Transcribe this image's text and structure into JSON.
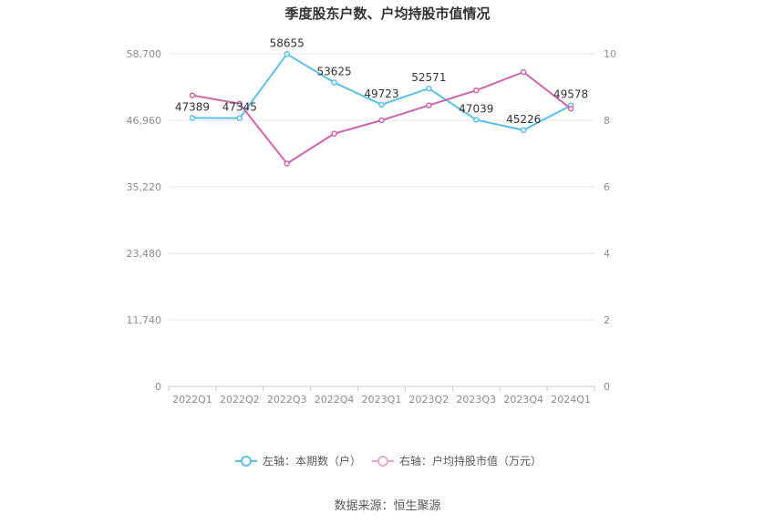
{
  "chart_data": {
    "type": "line",
    "title": "季度股东户数、户均持股市值情况",
    "categories": [
      "2022Q1",
      "2022Q2",
      "2022Q3",
      "2022Q4",
      "2023Q1",
      "2023Q2",
      "2023Q3",
      "2023Q4",
      "2024Q1"
    ],
    "y_left": {
      "range": [
        0,
        58700
      ],
      "ticks": [
        0,
        11740,
        23480,
        35220,
        46960,
        58700
      ],
      "tick_labels": [
        "0",
        "11,740",
        "23,480",
        "35,220",
        "46,960",
        "58,700"
      ]
    },
    "y_right": {
      "range": [
        0,
        10
      ],
      "ticks": [
        0,
        2,
        4,
        6,
        8,
        10
      ],
      "tick_labels": [
        "0",
        "2",
        "4",
        "6",
        "8",
        "10"
      ]
    },
    "series": [
      {
        "name": "左轴：本期数（户）",
        "axis": "left",
        "color": "#5bc0eb",
        "values": [
          47389,
          47345,
          58655,
          53625,
          49723,
          52571,
          47039,
          45226,
          49578
        ],
        "labels": [
          "47389",
          "47345",
          "58655",
          "53625",
          "49723",
          "52571",
          "47039",
          "45226",
          "49578"
        ]
      },
      {
        "name": "右轴：户均持股市值（万元）",
        "axis": "right",
        "color": "#d064ab",
        "values": [
          8.75,
          8.5,
          6.7,
          7.6,
          8.0,
          8.45,
          8.9,
          9.45,
          8.35
        ]
      }
    ],
    "grid": true,
    "legend_position": "bottom"
  },
  "source": "数据来源：恒生聚源"
}
